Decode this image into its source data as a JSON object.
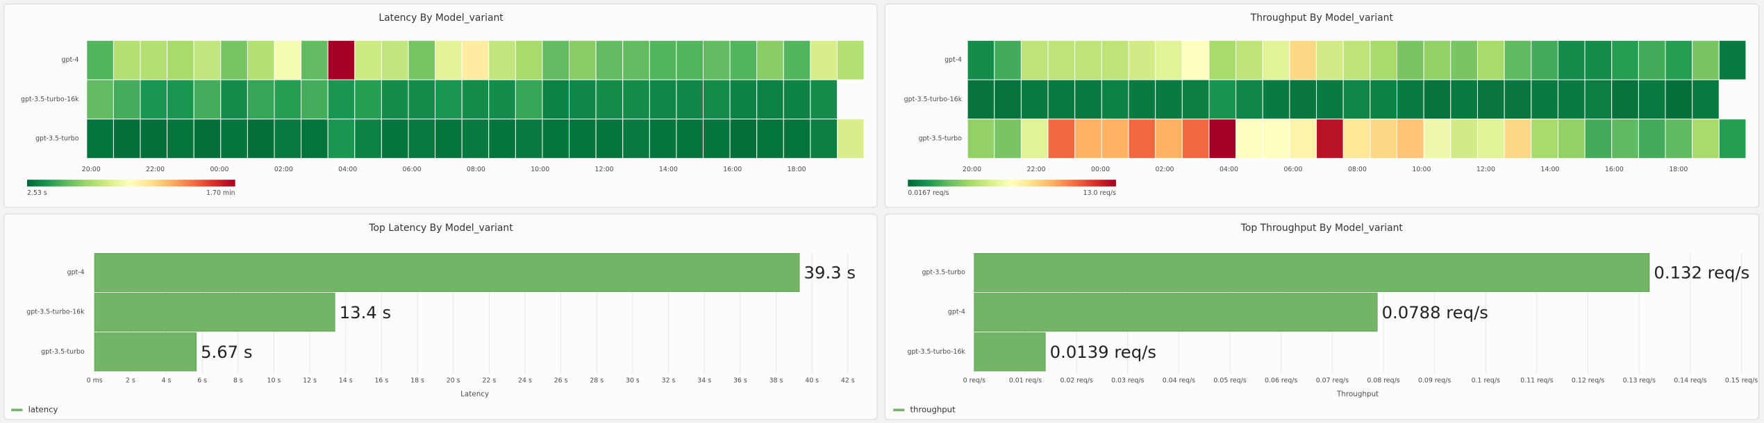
{
  "chart_data": [
    {
      "type": "heatmap",
      "title": "Latency By Model_variant",
      "categories": [
        "gpt-4",
        "gpt-3.5-turbo-16k",
        "gpt-3.5-turbo"
      ],
      "values": [
        [
          20,
          35,
          35,
          33,
          38,
          25,
          35,
          50,
          22,
          102,
          40,
          38,
          25,
          45,
          58,
          38,
          33,
          22,
          28,
          22,
          22,
          20,
          20,
          22,
          20,
          28,
          20,
          42,
          35
        ],
        [
          22,
          18,
          12,
          12,
          18,
          10,
          16,
          14,
          18,
          12,
          14,
          10,
          10,
          12,
          10,
          10,
          16,
          8,
          9,
          10,
          10,
          9,
          9,
          10,
          8,
          8,
          8,
          10,
          null
        ],
        [
          5,
          4,
          4,
          5,
          4,
          5,
          4,
          6,
          5,
          12,
          8,
          5,
          6,
          5,
          6,
          5,
          6,
          5,
          5,
          5,
          6,
          5,
          5,
          5,
          4,
          5,
          5,
          7,
          42
        ]
      ],
      "xlim": [
        19.86,
        44.1
      ],
      "xticks": [
        {
          "value": 20,
          "label": "20:00"
        },
        {
          "value": 22,
          "label": "22:00"
        },
        {
          "value": 24,
          "label": "00:00"
        },
        {
          "value": 26,
          "label": "02:00"
        },
        {
          "value": 28,
          "label": "04:00"
        },
        {
          "value": 30,
          "label": "06:00"
        },
        {
          "value": 32,
          "label": "08:00"
        },
        {
          "value": 34,
          "label": "10:00"
        },
        {
          "value": 36,
          "label": "12:00"
        },
        {
          "value": 38,
          "label": "14:00"
        },
        {
          "value": 40,
          "label": "16:00"
        },
        {
          "value": 42,
          "label": "18:00"
        }
      ],
      "zlim": [
        {
          "value": 2.53,
          "label": "2.53 s"
        },
        {
          "value": 102,
          "label": "1.70 min"
        }
      ],
      "color_scale": [
        "#006837",
        "#1a9850",
        "#66bd63",
        "#a6d96a",
        "#d9ef8b",
        "#ffffbf",
        "#fee08b",
        "#fdae61",
        "#f46d43",
        "#d73027",
        "#a50026"
      ]
    },
    {
      "type": "heatmap",
      "title": "Throughput By Model_variant",
      "categories": [
        "gpt-4",
        "gpt-3.5-turbo-16k",
        "gpt-3.5-turbo"
      ],
      "values": [
        [
          1,
          2,
          4.5,
          4.5,
          4.5,
          4.5,
          5,
          5.5,
          6.5,
          4,
          4.5,
          5.5,
          8,
          5,
          4.5,
          4,
          3,
          3.5,
          3,
          4,
          2.5,
          2,
          1,
          1,
          1.5,
          2,
          1.5,
          3,
          0.5
        ],
        [
          0.3,
          0.3,
          0.5,
          0.5,
          0.5,
          0.7,
          0.5,
          0.5,
          0.6,
          1.2,
          0.8,
          0.5,
          0.4,
          0.5,
          0.8,
          0.7,
          0.5,
          0.3,
          0.5,
          0.4,
          0.4,
          0.5,
          0.5,
          0.6,
          0.3,
          0.5,
          0.2,
          0.5,
          null
        ],
        [
          3.5,
          3,
          5.5,
          10.5,
          9,
          9,
          10.5,
          9,
          10.5,
          13,
          6.5,
          6.5,
          7,
          12.5,
          7.5,
          8,
          8.5,
          6,
          5,
          5.5,
          8,
          4,
          3.5,
          2,
          2.5,
          2,
          2.5,
          4,
          1.5
        ]
      ],
      "xlim": [
        19.86,
        44.1
      ],
      "xticks": [
        {
          "value": 20,
          "label": "20:00"
        },
        {
          "value": 22,
          "label": "22:00"
        },
        {
          "value": 24,
          "label": "00:00"
        },
        {
          "value": 26,
          "label": "02:00"
        },
        {
          "value": 28,
          "label": "04:00"
        },
        {
          "value": 30,
          "label": "06:00"
        },
        {
          "value": 32,
          "label": "08:00"
        },
        {
          "value": 34,
          "label": "10:00"
        },
        {
          "value": 36,
          "label": "12:00"
        },
        {
          "value": 38,
          "label": "14:00"
        },
        {
          "value": 40,
          "label": "16:00"
        },
        {
          "value": 42,
          "label": "18:00"
        }
      ],
      "zlim": [
        {
          "value": 0.0167,
          "label": "0.0167 req/s"
        },
        {
          "value": 13.0,
          "label": "13.0 req/s"
        }
      ],
      "color_scale": [
        "#006837",
        "#1a9850",
        "#66bd63",
        "#a6d96a",
        "#d9ef8b",
        "#ffffbf",
        "#fee08b",
        "#fdae61",
        "#f46d43",
        "#d73027",
        "#a50026"
      ]
    },
    {
      "type": "bar",
      "title": "Top Latency By Model_variant",
      "x_label": "Latency",
      "categories": [
        "gpt-4",
        "gpt-3.5-turbo-16k",
        "gpt-3.5-turbo"
      ],
      "series": [
        {
          "name": "latency",
          "color": "#73b566",
          "values": [
            39.3,
            13.4,
            5.67
          ],
          "value_labels": [
            "39.3 s",
            "13.4 s",
            "5.67 s"
          ]
        }
      ],
      "xlim": [
        0,
        42.4
      ],
      "xticks": [
        {
          "value": 0,
          "label": "0 ms"
        },
        {
          "value": 2,
          "label": "2 s"
        },
        {
          "value": 4,
          "label": "4 s"
        },
        {
          "value": 6,
          "label": "6 s"
        },
        {
          "value": 8,
          "label": "8 s"
        },
        {
          "value": 10,
          "label": "10 s"
        },
        {
          "value": 12,
          "label": "12 s"
        },
        {
          "value": 14,
          "label": "14 s"
        },
        {
          "value": 16,
          "label": "16 s"
        },
        {
          "value": 18,
          "label": "18 s"
        },
        {
          "value": 20,
          "label": "20 s"
        },
        {
          "value": 22,
          "label": "22 s"
        },
        {
          "value": 24,
          "label": "24 s"
        },
        {
          "value": 26,
          "label": "26 s"
        },
        {
          "value": 28,
          "label": "28 s"
        },
        {
          "value": 30,
          "label": "30 s"
        },
        {
          "value": 32,
          "label": "32 s"
        },
        {
          "value": 34,
          "label": "34 s"
        },
        {
          "value": 36,
          "label": "36 s"
        },
        {
          "value": 38,
          "label": "38 s"
        },
        {
          "value": 40,
          "label": "40 s"
        },
        {
          "value": 42,
          "label": "42 s"
        }
      ],
      "grid": true
    },
    {
      "type": "bar",
      "title": "Top Throughput By Model_variant",
      "x_label": "Throughput",
      "categories": [
        "gpt-3.5-turbo",
        "gpt-4",
        "gpt-3.5-turbo-16k"
      ],
      "series": [
        {
          "name": "throughput",
          "color": "#73b566",
          "values": [
            0.132,
            0.0788,
            0.0139
          ],
          "value_labels": [
            "0.132 req/s",
            "0.0788 req/s",
            "0.0139 req/s"
          ]
        }
      ],
      "xlim": [
        0,
        0.15
      ],
      "xticks": [
        {
          "value": 0,
          "label": "0 req/s"
        },
        {
          "value": 0.01,
          "label": "0.01 req/s"
        },
        {
          "value": 0.02,
          "label": "0.02 req/s"
        },
        {
          "value": 0.03,
          "label": "0.03 req/s"
        },
        {
          "value": 0.04,
          "label": "0.04 req/s"
        },
        {
          "value": 0.05,
          "label": "0.05 req/s"
        },
        {
          "value": 0.06,
          "label": "0.06 req/s"
        },
        {
          "value": 0.07,
          "label": "0.07 req/s"
        },
        {
          "value": 0.08,
          "label": "0.08 req/s"
        },
        {
          "value": 0.09,
          "label": "0.09 req/s"
        },
        {
          "value": 0.1,
          "label": "0.1 req/s"
        },
        {
          "value": 0.11,
          "label": "0.11 req/s"
        },
        {
          "value": 0.12,
          "label": "0.12 req/s"
        },
        {
          "value": 0.13,
          "label": "0.13 req/s"
        },
        {
          "value": 0.14,
          "label": "0.14 req/s"
        },
        {
          "value": 0.15,
          "label": "0.15 req/s"
        }
      ],
      "grid": true
    }
  ]
}
